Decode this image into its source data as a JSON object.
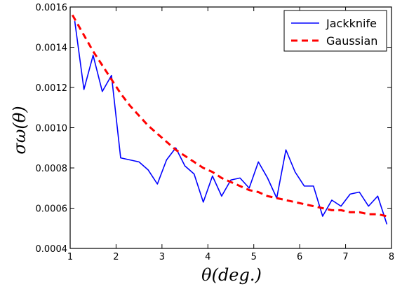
{
  "chart_data": {
    "type": "line",
    "title": "",
    "xlabel": "θ(deg.)",
    "ylabel": "σω(θ)",
    "xlim": [
      1,
      8
    ],
    "ylim": [
      0.0004,
      0.0016
    ],
    "x_ticks": [
      1,
      2,
      3,
      4,
      5,
      6,
      7,
      8
    ],
    "x_tick_labels": [
      "1",
      "2",
      "3",
      "4",
      "5",
      "6",
      "7",
      "8"
    ],
    "y_ticks": [
      0.0004,
      0.0006,
      0.0008,
      0.001,
      0.0012,
      0.0014,
      0.0016
    ],
    "y_tick_labels": [
      "0.0004",
      "0.0006",
      "0.0008",
      "0.0010",
      "0.0012",
      "0.0014",
      "0.0016"
    ],
    "grid": false,
    "legend_position": "top-right",
    "series": [
      {
        "name": "Jackknife",
        "color": "#0000ff",
        "style": "solid",
        "points": [
          [
            1.1,
            0.00153
          ],
          [
            1.3,
            0.00119
          ],
          [
            1.5,
            0.00136
          ],
          [
            1.7,
            0.00118
          ],
          [
            1.9,
            0.00126
          ],
          [
            2.1,
            0.00085
          ],
          [
            2.3,
            0.00084
          ],
          [
            2.5,
            0.00083
          ],
          [
            2.7,
            0.00079
          ],
          [
            2.9,
            0.00072
          ],
          [
            3.1,
            0.00084
          ],
          [
            3.3,
            0.0009
          ],
          [
            3.5,
            0.00081
          ],
          [
            3.7,
            0.00077
          ],
          [
            3.9,
            0.00063
          ],
          [
            4.1,
            0.00076
          ],
          [
            4.3,
            0.00066
          ],
          [
            4.5,
            0.00074
          ],
          [
            4.7,
            0.00075
          ],
          [
            4.9,
            0.0007
          ],
          [
            5.1,
            0.00083
          ],
          [
            5.3,
            0.00075
          ],
          [
            5.5,
            0.00065
          ],
          [
            5.7,
            0.00089
          ],
          [
            5.9,
            0.00078
          ],
          [
            6.1,
            0.00071
          ],
          [
            6.3,
            0.00071
          ],
          [
            6.5,
            0.00056
          ],
          [
            6.7,
            0.00064
          ],
          [
            6.9,
            0.00061
          ],
          [
            7.1,
            0.00067
          ],
          [
            7.3,
            0.00068
          ],
          [
            7.5,
            0.00061
          ],
          [
            7.7,
            0.00066
          ],
          [
            7.9,
            0.00052
          ]
        ]
      },
      {
        "name": "Gaussian",
        "color": "#ff0000",
        "style": "dashed",
        "points": [
          [
            1.05,
            0.00156
          ],
          [
            1.1,
            0.00154
          ],
          [
            1.3,
            0.00146
          ],
          [
            1.5,
            0.00138
          ],
          [
            1.7,
            0.00131
          ],
          [
            1.9,
            0.00124
          ],
          [
            2.1,
            0.00117
          ],
          [
            2.3,
            0.00111
          ],
          [
            2.5,
            0.00106
          ],
          [
            2.7,
            0.00101
          ],
          [
            2.9,
            0.00097
          ],
          [
            3.1,
            0.00093
          ],
          [
            3.3,
            0.00089
          ],
          [
            3.5,
            0.00086
          ],
          [
            3.7,
            0.00083
          ],
          [
            3.9,
            0.0008
          ],
          [
            4.1,
            0.00078
          ],
          [
            4.3,
            0.00075
          ],
          [
            4.5,
            0.00073
          ],
          [
            4.7,
            0.00071
          ],
          [
            4.9,
            0.00069
          ],
          [
            5.1,
            0.00068
          ],
          [
            5.3,
            0.00066
          ],
          [
            5.5,
            0.00065
          ],
          [
            5.7,
            0.00064
          ],
          [
            5.9,
            0.00063
          ],
          [
            6.1,
            0.00062
          ],
          [
            6.3,
            0.00061
          ],
          [
            6.5,
            0.0006
          ],
          [
            6.7,
            0.00059
          ],
          [
            6.9,
            0.00059
          ],
          [
            7.1,
            0.00058
          ],
          [
            7.3,
            0.00058
          ],
          [
            7.5,
            0.00057
          ],
          [
            7.7,
            0.00057
          ],
          [
            7.9,
            0.00056
          ]
        ]
      }
    ]
  }
}
